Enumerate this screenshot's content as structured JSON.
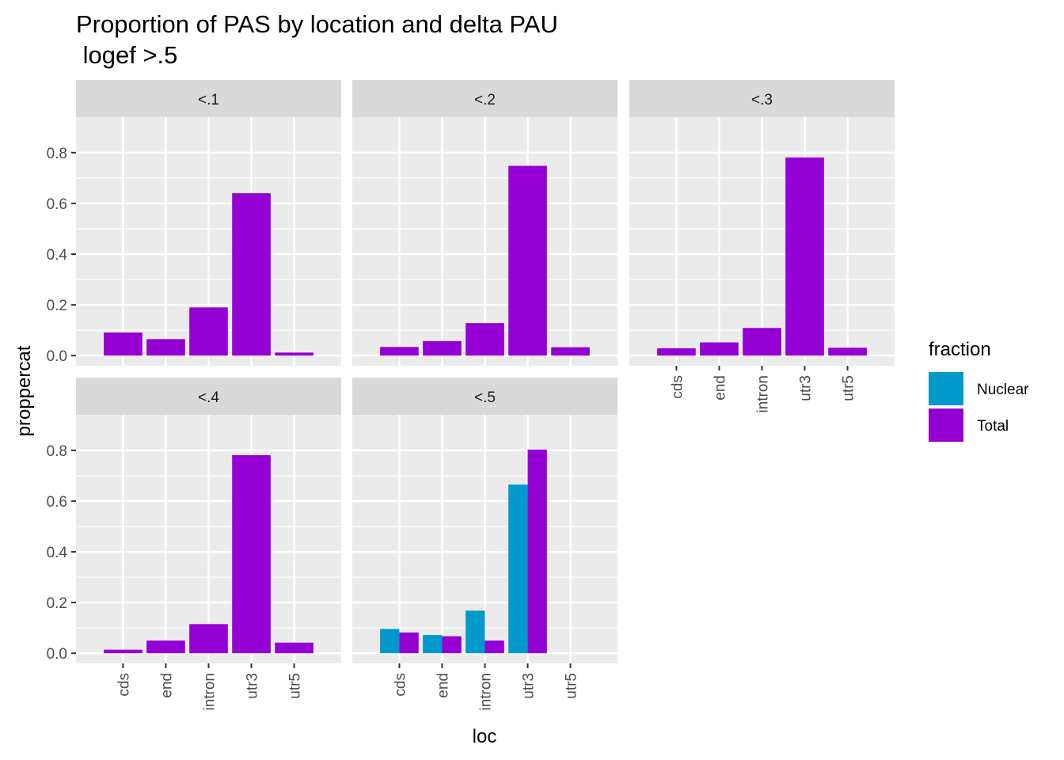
{
  "chart_data": {
    "type": "bar",
    "title": "Proportion of PAS by location and delta PAU",
    "subtitle": " logef >.5",
    "xlabel": "loc",
    "ylabel": "proppercat",
    "ylim": [
      -0.04,
      0.94
    ],
    "yticks": [
      "0.0",
      "0.2",
      "0.4",
      "0.6",
      "0.8"
    ],
    "ytick_values": [
      0,
      0.2,
      0.4,
      0.6,
      0.8
    ],
    "categories": [
      "cds",
      "end",
      "intron",
      "utr3",
      "utr5"
    ],
    "grid": true,
    "legend": {
      "title": "fraction",
      "position": "right",
      "entries": [
        {
          "name": "Nuclear",
          "color": "#0099CC"
        },
        {
          "name": "Total",
          "color": "#9400D3"
        }
      ]
    },
    "colors": {
      "Nuclear": "#0099CC",
      "Total": "#9400D3"
    },
    "facets": [
      {
        "label": "<.1",
        "series": [
          {
            "name": "Total",
            "values": [
              0.091,
              0.065,
              0.19,
              0.64,
              0.012
            ]
          }
        ]
      },
      {
        "label": "<.2",
        "series": [
          {
            "name": "Total",
            "values": [
              0.034,
              0.057,
              0.128,
              0.748,
              0.033
            ]
          }
        ]
      },
      {
        "label": "<.3",
        "series": [
          {
            "name": "Total",
            "values": [
              0.029,
              0.052,
              0.109,
              0.781,
              0.031
            ]
          }
        ]
      },
      {
        "label": "<.4",
        "series": [
          {
            "name": "Total",
            "values": [
              0.014,
              0.05,
              0.115,
              0.781,
              0.042
            ]
          }
        ]
      },
      {
        "label": "<.5",
        "series": [
          {
            "name": "Nuclear",
            "values": [
              0.096,
              0.072,
              0.168,
              0.665,
              null
            ]
          },
          {
            "name": "Total",
            "values": [
              0.082,
              0.067,
              0.05,
              0.803,
              null
            ]
          }
        ]
      }
    ]
  }
}
